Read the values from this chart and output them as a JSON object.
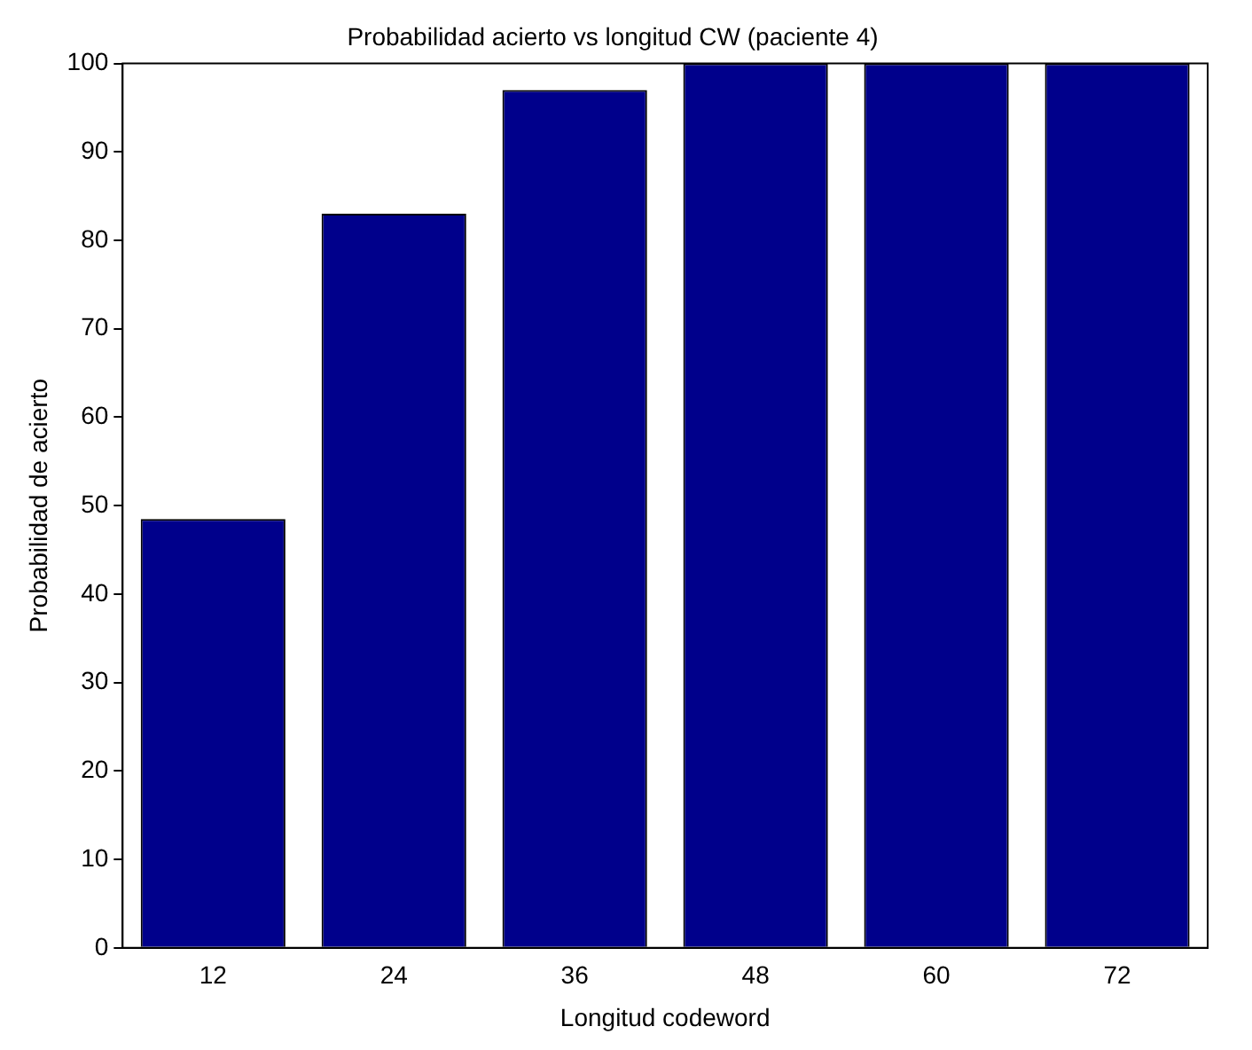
{
  "chart_data": {
    "type": "bar",
    "title": "Probabilidad acierto vs longitud CW (paciente 4)",
    "xlabel": "Longitud codeword",
    "ylabel": "Probabilidad de acierto",
    "categories": [
      "12",
      "24",
      "36",
      "48",
      "60",
      "72"
    ],
    "values": [
      48.5,
      83,
      97,
      100,
      100,
      100
    ],
    "color": "#00008b",
    "ylim": [
      0,
      100
    ],
    "yticks": [
      0,
      10,
      20,
      30,
      40,
      50,
      60,
      70,
      80,
      90,
      100
    ],
    "grid": false,
    "legend": false
  }
}
